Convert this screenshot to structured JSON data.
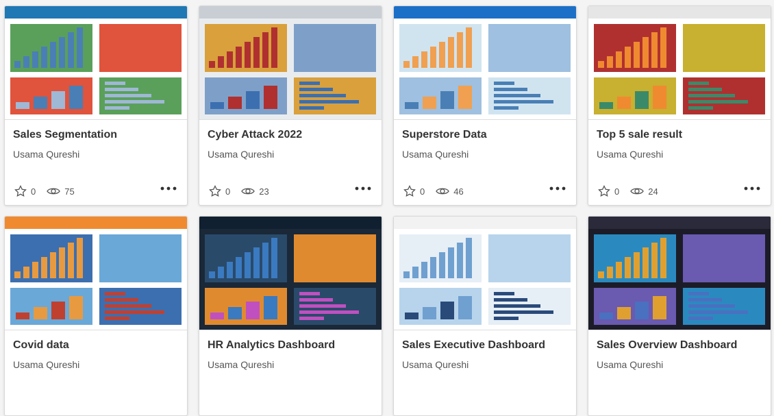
{
  "cards": [
    {
      "title": "Sales Segmentation",
      "author": "Usama Qureshi",
      "likes": 0,
      "views": 75
    },
    {
      "title": "Cyber Attack 2022",
      "author": "Usama Qureshi",
      "likes": 0,
      "views": 23
    },
    {
      "title": "Superstore Data",
      "author": "Usama Qureshi",
      "likes": 0,
      "views": 46
    },
    {
      "title": "Top 5 sale result",
      "author": "Usama Qureshi",
      "likes": 0,
      "views": 24
    },
    {
      "title": "Covid data",
      "author": "Usama Qureshi"
    },
    {
      "title": "HR Analytics Dashboard",
      "author": "Usama Qureshi"
    },
    {
      "title": "Sales Executive Dashboard",
      "author": "Usama Qureshi"
    },
    {
      "title": "Sales Overview Dashboard",
      "author": "Usama Qureshi"
    }
  ]
}
